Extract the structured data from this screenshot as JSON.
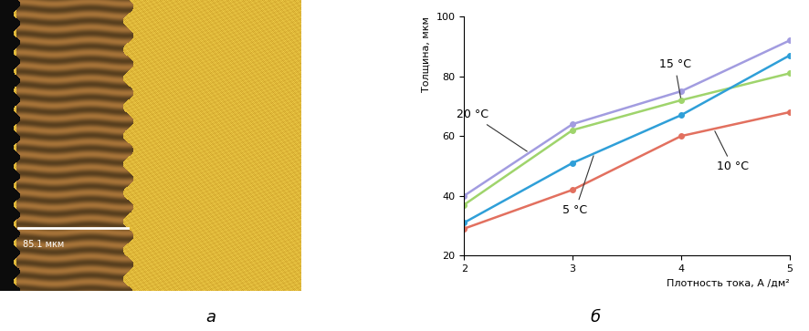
{
  "figure": {
    "panel_labels": [
      "а",
      "б"
    ]
  },
  "micrograph": {
    "scale_label": "85.1 мкм"
  },
  "chart_data": {
    "type": "line",
    "x": [
      2,
      3,
      4,
      5
    ],
    "xlabel": "Плотность тока, А /дм²",
    "ylabel": "Толщина, мкм",
    "xlim": [
      2,
      5
    ],
    "xticks": [
      2,
      3,
      4,
      5
    ],
    "ylim": [
      20,
      100
    ],
    "yticks": [
      20,
      40,
      60,
      80,
      100
    ],
    "grid": false,
    "marker": "o",
    "line_style": "solid",
    "series": [
      {
        "name": "20 °C",
        "color": "#a29ce0",
        "values": [
          40,
          64,
          75,
          92
        ]
      },
      {
        "name": "15 °C",
        "color": "#9fd46c",
        "values": [
          37,
          62,
          72,
          81
        ]
      },
      {
        "name": "5 °C",
        "color": "#2f9fd8",
        "values": [
          31,
          51,
          67,
          87
        ]
      },
      {
        "name": "10 °C",
        "color": "#e2705f",
        "values": [
          29,
          42,
          60,
          68
        ]
      }
    ]
  }
}
